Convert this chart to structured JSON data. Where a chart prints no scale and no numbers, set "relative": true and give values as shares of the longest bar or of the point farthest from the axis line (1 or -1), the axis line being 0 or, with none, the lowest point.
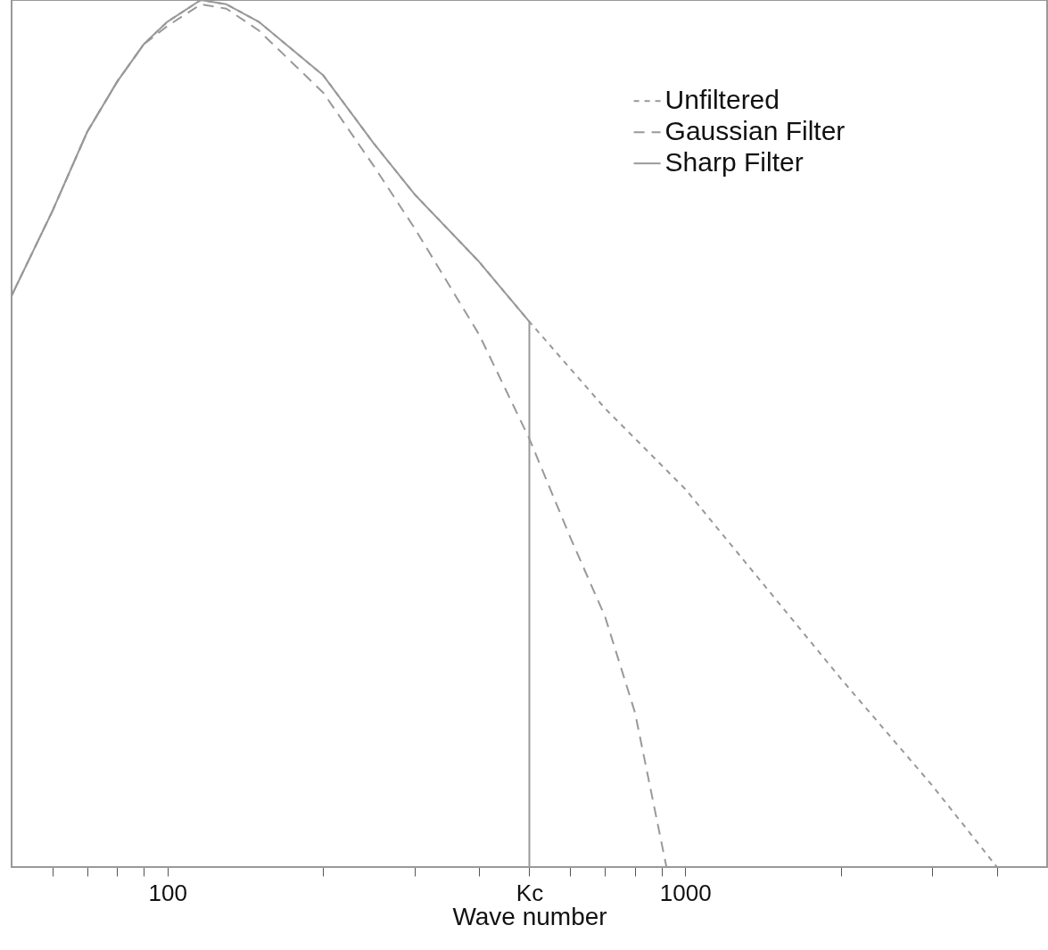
{
  "chart_data": {
    "type": "line",
    "xlabel": "Wave number",
    "log": "x",
    "relative": true,
    "legend": "top right",
    "xlim": [
      50,
      5000
    ],
    "xticks": [
      {
        "value": 60,
        "label": null
      },
      {
        "value": 70,
        "label": null
      },
      {
        "value": 80,
        "label": null
      },
      {
        "value": 90,
        "label": null
      },
      100,
      {
        "value": 200,
        "label": null
      },
      {
        "value": 300,
        "label": null
      },
      {
        "value": 400,
        "label": null
      },
      {
        "value": 500,
        "label": "Kc"
      },
      {
        "value": 600,
        "label": null
      },
      {
        "value": 700,
        "label": null
      },
      {
        "value": 800,
        "label": null
      },
      {
        "value": 900,
        "label": null
      },
      1000,
      {
        "value": 2000,
        "label": null
      },
      {
        "value": 3000,
        "label": null
      },
      {
        "value": 4000,
        "label": null
      }
    ],
    "series": [
      {
        "name": "Unfiltered",
        "color": "#999999",
        "line_style": "dotted",
        "x": [
          50,
          60,
          70,
          80,
          90,
          100,
          116,
          130,
          150,
          200,
          250,
          300,
          400,
          500,
          700,
          1000,
          2000,
          3000,
          4000
        ],
        "values": [
          0.659,
          0.757,
          0.848,
          0.906,
          0.949,
          0.975,
          1.0,
          0.995,
          0.975,
          0.913,
          0.835,
          0.776,
          0.698,
          0.629,
          0.529,
          0.436,
          0.217,
          0.094,
          0
        ]
      },
      {
        "name": "Gaussian Filter",
        "color": "#999999",
        "line_style": "dashed",
        "x": [
          50,
          60,
          70,
          80,
          90,
          100,
          116,
          130,
          150,
          200,
          250,
          300,
          400,
          500,
          600,
          700,
          800,
          920
        ],
        "values": [
          0.659,
          0.757,
          0.848,
          0.906,
          0.949,
          0.97,
          0.995,
          0.99,
          0.965,
          0.893,
          0.809,
          0.737,
          0.614,
          0.494,
          0.38,
          0.289,
          0.178,
          0
        ]
      },
      {
        "name": "Sharp Filter",
        "color": "#999999",
        "line_style": "solid",
        "x": [
          50,
          60,
          70,
          80,
          90,
          100,
          116,
          130,
          150,
          200,
          250,
          300,
          400,
          500,
          500
        ],
        "values": [
          0.659,
          0.757,
          0.848,
          0.906,
          0.949,
          0.975,
          1.0,
          0.995,
          0.975,
          0.913,
          0.835,
          0.776,
          0.698,
          0.629,
          0
        ]
      }
    ]
  }
}
